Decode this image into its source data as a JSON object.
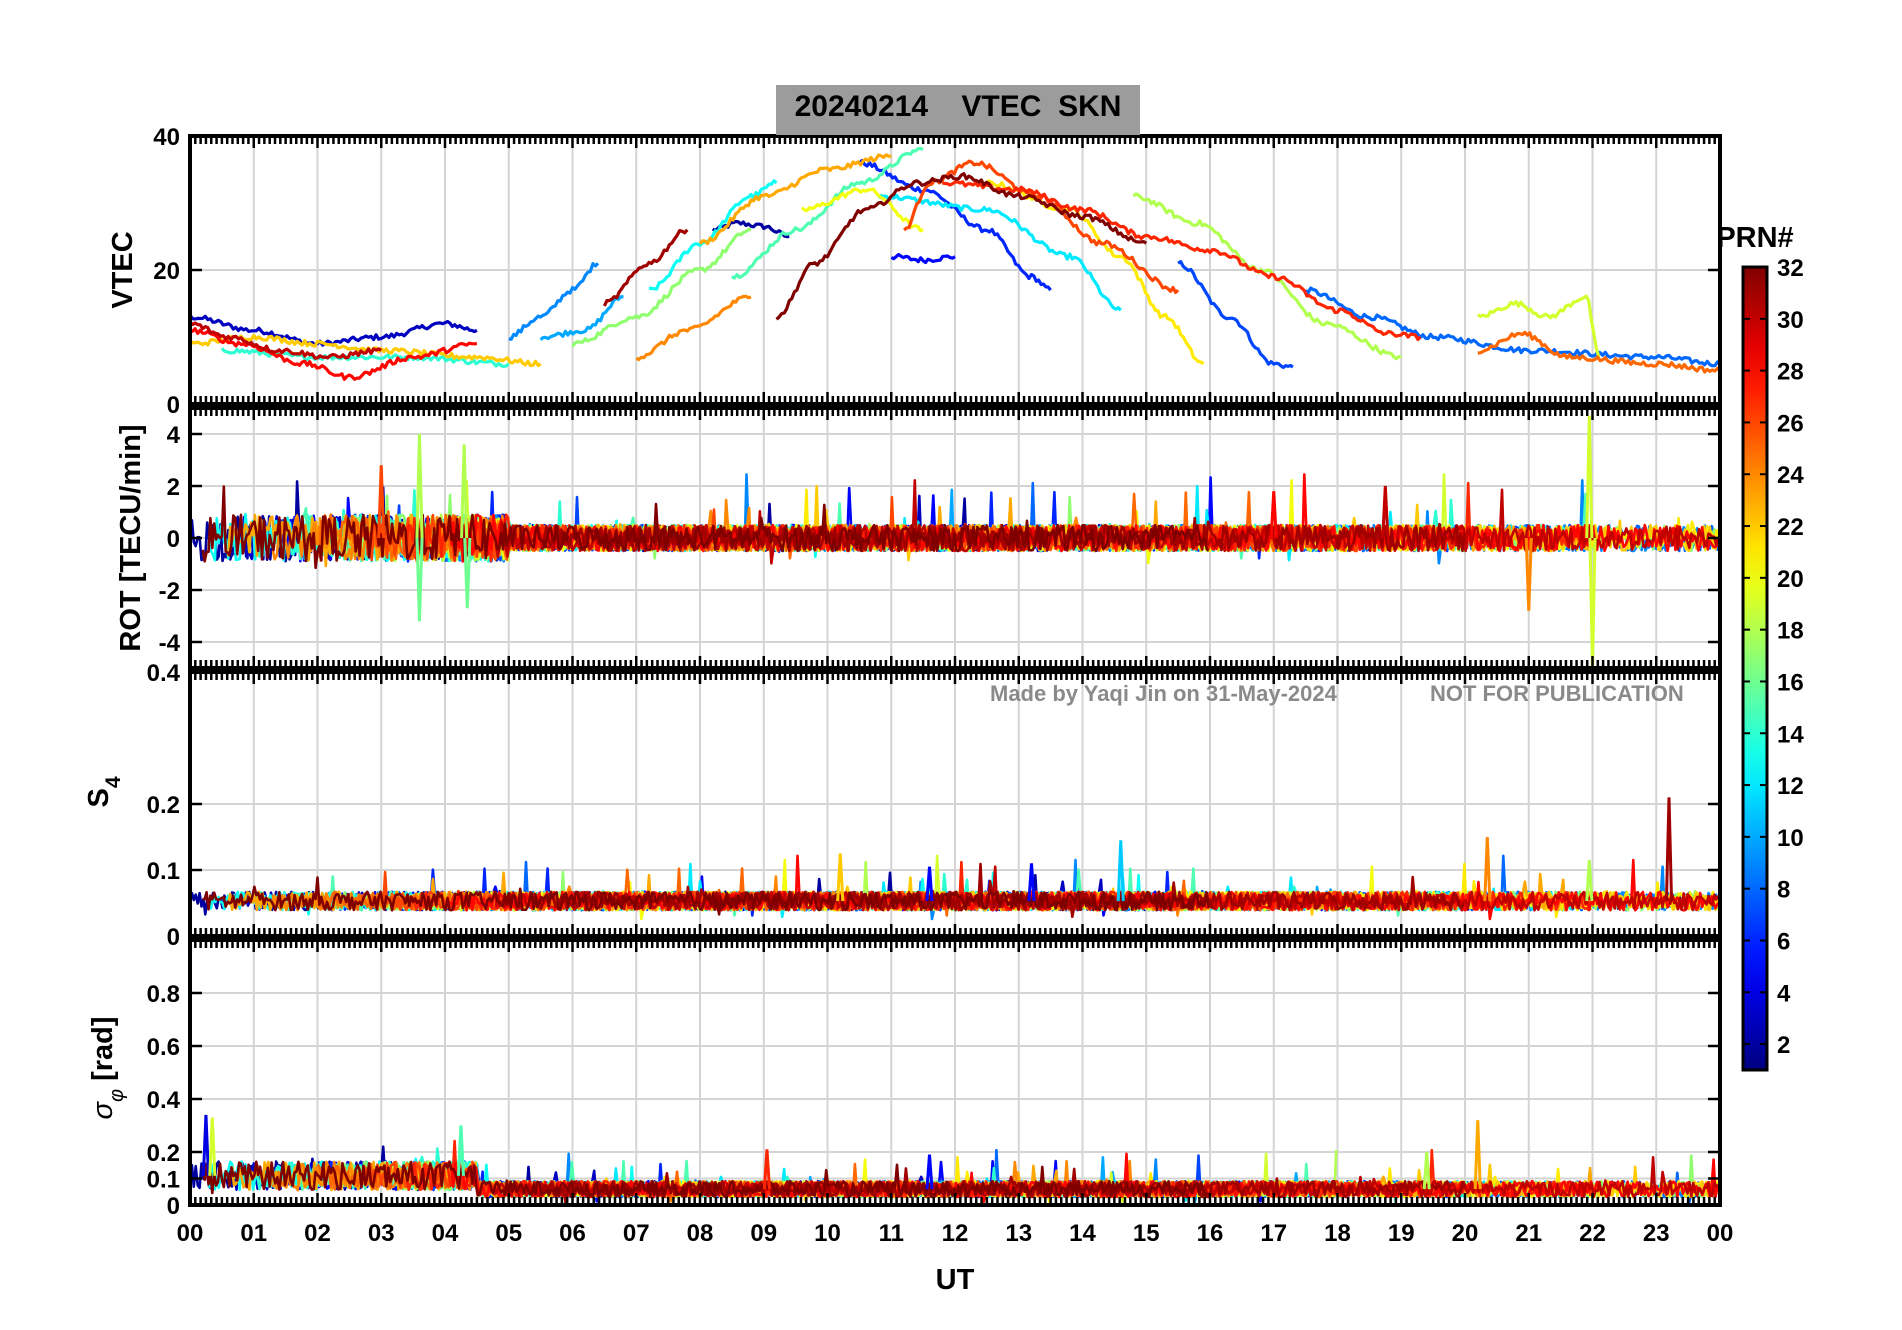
{
  "figure": {
    "title": "20240214    VTEC  SKN",
    "watermark_left": "Made by Yaqi Jin on 31-May-2024",
    "watermark_right": "NOT FOR PUBLICATION"
  },
  "colors": {
    "title_bg": "#9c9c9c",
    "grid": "#d4d4d4",
    "watermark": "#8a8a8a",
    "colormap": "jet"
  },
  "chart_data": [
    {
      "type": "line",
      "panel": "vtec",
      "ylabel": "VTEC",
      "ylim": [
        0,
        40
      ],
      "yticks": [
        "0",
        "20",
        "40"
      ],
      "xlim": [
        0,
        24
      ],
      "grid": true,
      "series": [
        {
          "prn": 2,
          "x": [
            8.2,
            8.6,
            9.0,
            9.4
          ],
          "y": [
            26,
            27,
            26.5,
            25
          ]
        },
        {
          "prn": 3,
          "x": [
            0,
            1,
            2,
            3,
            4,
            4.5
          ],
          "y": [
            13,
            11,
            9,
            10,
            12,
            11
          ]
        },
        {
          "prn": 5,
          "x": [
            11.0,
            11.5,
            12.0
          ],
          "y": [
            22,
            21.5,
            22
          ]
        },
        {
          "prn": 6,
          "x": [
            10.5,
            11.5,
            12.5,
            13.2,
            13.5
          ],
          "y": [
            36,
            32,
            26,
            19,
            17
          ]
        },
        {
          "prn": 7,
          "x": [
            15.5,
            16.3,
            17.0,
            17.3
          ],
          "y": [
            21,
            13,
            6,
            5.5
          ]
        },
        {
          "prn": 8,
          "x": [
            17.5,
            18.5,
            19.5,
            21,
            23,
            24
          ],
          "y": [
            17,
            13,
            10,
            8,
            7,
            6
          ]
        },
        {
          "prn": 9,
          "x": [
            5,
            5.5,
            6.0,
            6.4
          ],
          "y": [
            10,
            13,
            17,
            21
          ]
        },
        {
          "prn": 10,
          "x": [
            5.5,
            6.2,
            6.8
          ],
          "y": [
            10,
            11,
            16
          ]
        },
        {
          "prn": 12,
          "x": [
            10.8,
            12.5,
            13.8,
            14.6
          ],
          "y": [
            31,
            29,
            22,
            14
          ]
        },
        {
          "prn": 13,
          "x": [
            7.2,
            8.0,
            8.8,
            9.2
          ],
          "y": [
            17,
            24,
            31,
            33
          ]
        },
        {
          "prn": 14,
          "x": [
            0.5,
            2,
            3.5,
            5
          ],
          "y": [
            8,
            7,
            7,
            6
          ]
        },
        {
          "prn": 15,
          "x": [
            8.5,
            9.5,
            10.5,
            11.5
          ],
          "y": [
            19,
            26,
            33,
            38
          ]
        },
        {
          "prn": 17,
          "x": [
            6.0,
            7.0,
            8.0,
            8.8
          ],
          "y": [
            9,
            13,
            20,
            26
          ]
        },
        {
          "prn": 18,
          "x": [
            14.8,
            15.8,
            16.8,
            17.8,
            19.0
          ],
          "y": [
            31,
            27,
            20,
            12,
            7
          ]
        },
        {
          "prn": 19,
          "x": [
            20.2,
            20.8,
            21.3,
            21.9,
            22.1
          ],
          "y": [
            13,
            15,
            13,
            16,
            7
          ]
        },
        {
          "prn": 20,
          "x": [
            9.6,
            10.6,
            11.5
          ],
          "y": [
            29,
            32,
            26
          ]
        },
        {
          "prn": 21,
          "x": [
            12.5,
            13.8,
            14.6,
            15.3,
            15.9
          ],
          "y": [
            33,
            29,
            22,
            13,
            6
          ]
        },
        {
          "prn": 22,
          "x": [
            0,
            1,
            2,
            3,
            4.5,
            5.5
          ],
          "y": [
            9,
            10,
            9,
            8,
            7,
            6
          ]
        },
        {
          "prn": 23,
          "x": [
            8.0,
            9.0,
            10.0,
            11.0
          ],
          "y": [
            24,
            31,
            35,
            37
          ]
        },
        {
          "prn": 24,
          "x": [
            7.0,
            7.8,
            8.8
          ],
          "y": [
            7,
            11,
            16
          ]
        },
        {
          "prn": 25,
          "x": [
            20.2,
            20.9,
            21.6,
            23,
            24
          ],
          "y": [
            8,
            10.5,
            7,
            6,
            5
          ]
        },
        {
          "prn": 26,
          "x": [
            11.2,
            11.6,
            12.3,
            13.3,
            14.3,
            15.5
          ],
          "y": [
            26,
            33,
            36,
            31,
            24,
            17
          ]
        },
        {
          "prn": 27,
          "x": [
            11.8,
            13.0,
            14.0,
            15.0,
            16.0,
            17.0,
            18.0,
            18.8,
            19.3
          ],
          "y": [
            33,
            32,
            29,
            25,
            23,
            19,
            14,
            10.5,
            10
          ]
        },
        {
          "prn": 28,
          "x": [
            0,
            0.8,
            1.8,
            2.5,
            3.5,
            4.5
          ],
          "y": [
            11,
            9,
            6,
            4,
            7,
            9
          ]
        },
        {
          "prn": 30,
          "x": [
            0,
            0.6,
            1.4,
            2.2,
            3.0
          ],
          "y": [
            12,
            10,
            8,
            7,
            8
          ]
        },
        {
          "prn": 31,
          "x": [
            6.5,
            7.2,
            7.8
          ],
          "y": [
            15,
            21,
            26
          ]
        },
        {
          "prn": 32,
          "x": [
            9.2,
            9.8,
            10.6,
            11.4,
            12.1,
            13.0,
            14.0,
            15.0
          ],
          "y": [
            13,
            21,
            29,
            33,
            34,
            31,
            28,
            24
          ]
        }
      ]
    },
    {
      "type": "line",
      "panel": "rot",
      "ylabel": "ROT [TECU/min]",
      "ylim": [
        -5,
        5
      ],
      "yticks": [
        "-4",
        "-2",
        "0",
        "2",
        "4"
      ],
      "xlim": [
        0,
        24
      ],
      "grid": true,
      "spikes": [
        {
          "prn": 18,
          "x": 3.6,
          "y": 4.0
        },
        {
          "prn": 16,
          "x": 3.6,
          "y": -3.2
        },
        {
          "prn": 18,
          "x": 4.3,
          "y": 3.6
        },
        {
          "prn": 16,
          "x": 4.35,
          "y": -2.7
        },
        {
          "prn": 26,
          "x": 3.0,
          "y": 2.8
        },
        {
          "prn": 19,
          "x": 21.95,
          "y": 4.7
        },
        {
          "prn": 19,
          "x": 22.0,
          "y": -5.0
        },
        {
          "prn": 24,
          "x": 21.0,
          "y": -2.8
        },
        {
          "prn": 30,
          "x": 18.75,
          "y": 2.0
        },
        {
          "prn": 28,
          "x": 17.0,
          "y": 1.8
        }
      ]
    },
    {
      "type": "line",
      "panel": "s4",
      "ylabel": "S4",
      "ylim": [
        0,
        0.4
      ],
      "yticks": [
        "0",
        "0.1",
        "0.2",
        "0.4"
      ],
      "xlim": [
        0,
        24
      ],
      "grid": true,
      "spikes": [
        {
          "prn": 31,
          "x": 23.2,
          "y": 0.21
        },
        {
          "prn": 11,
          "x": 14.6,
          "y": 0.145
        },
        {
          "prn": 24,
          "x": 20.35,
          "y": 0.15
        },
        {
          "prn": 22,
          "x": 10.2,
          "y": 0.125
        },
        {
          "prn": 18,
          "x": 21.95,
          "y": 0.115
        },
        {
          "prn": 5,
          "x": 11.6,
          "y": 0.105
        },
        {
          "prn": 5,
          "x": 13.2,
          "y": 0.11
        }
      ]
    },
    {
      "type": "line",
      "panel": "sigma_phi",
      "ylabel": "σ_φ [rad]",
      "ylim": [
        0,
        1
      ],
      "yticks": [
        "0",
        "0.1",
        "0.2",
        "0.4",
        "0.6",
        "0.8"
      ],
      "xlim": [
        0,
        24
      ],
      "grid": true,
      "spikes": [
        {
          "prn": 4,
          "x": 0.25,
          "y": 0.34
        },
        {
          "prn": 19,
          "x": 0.35,
          "y": 0.33
        },
        {
          "prn": 15,
          "x": 4.25,
          "y": 0.3
        },
        {
          "prn": 23,
          "x": 20.2,
          "y": 0.32
        },
        {
          "prn": 18,
          "x": 19.4,
          "y": 0.2
        },
        {
          "prn": 5,
          "x": 11.6,
          "y": 0.19
        },
        {
          "prn": 27,
          "x": 9.05,
          "y": 0.21
        }
      ]
    },
    {
      "type": "colorbar",
      "title": "PRN#",
      "range": [
        1,
        32
      ],
      "ticks": [
        "2",
        "4",
        "6",
        "8",
        "10",
        "12",
        "14",
        "16",
        "18",
        "20",
        "22",
        "24",
        "26",
        "28",
        "30",
        "32"
      ]
    },
    {
      "type": "axis",
      "xlabel": "UT",
      "xticks": [
        "00",
        "01",
        "02",
        "03",
        "04",
        "05",
        "06",
        "07",
        "08",
        "09",
        "10",
        "11",
        "12",
        "13",
        "14",
        "15",
        "16",
        "17",
        "18",
        "19",
        "20",
        "21",
        "22",
        "23",
        "00"
      ]
    }
  ]
}
